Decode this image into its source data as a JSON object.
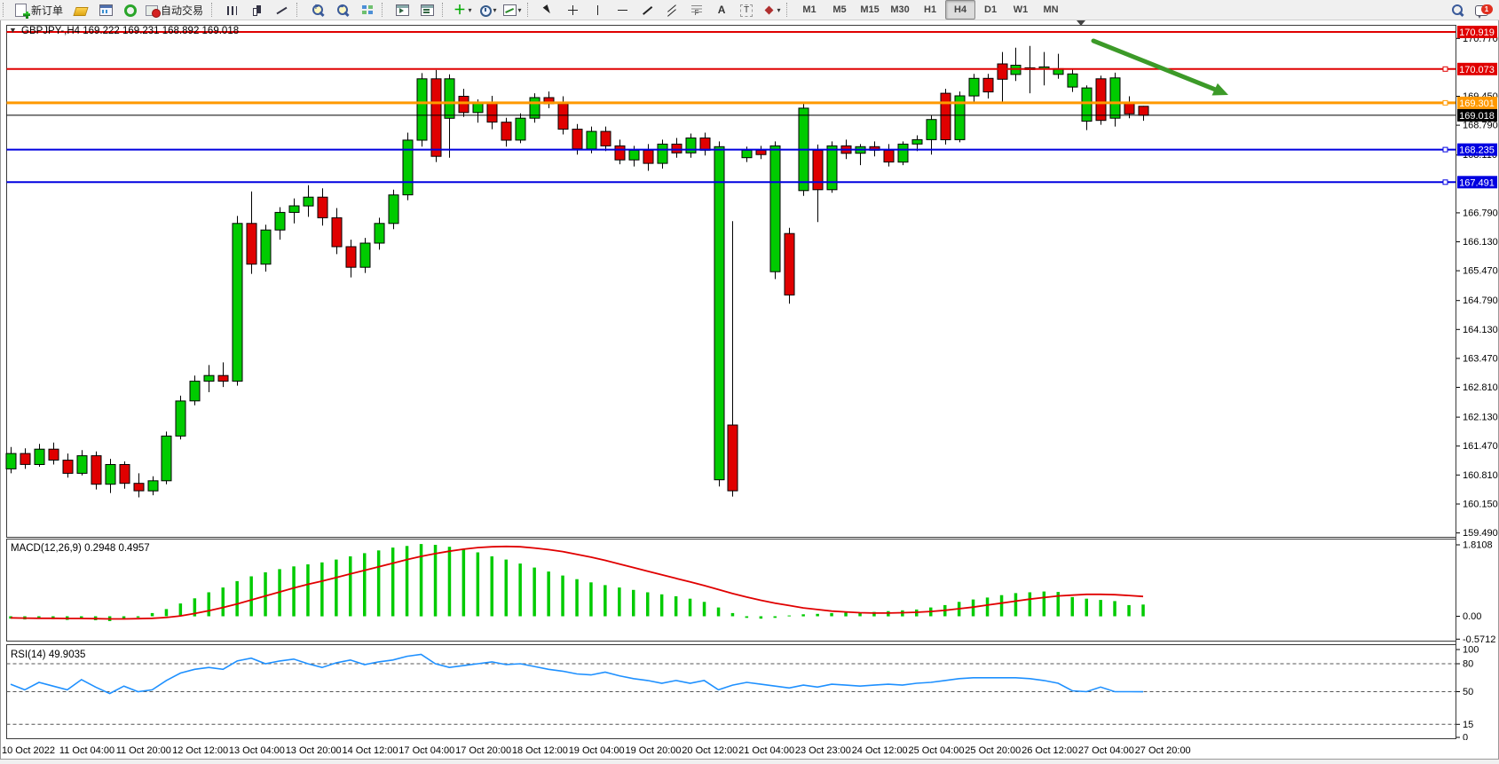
{
  "toolbar": {
    "new_order_label": "新订单",
    "autotrading_label": "自动交易",
    "timeframes": [
      "M1",
      "M5",
      "M15",
      "M30",
      "H1",
      "H4",
      "D1",
      "W1",
      "MN"
    ],
    "active_timeframe": "H4",
    "notification_count": "1",
    "groups": [
      [
        {
          "name": "new-order-button",
          "icon": "doc-plus-icon",
          "label_key": "new_order_label"
        },
        {
          "name": "gold-button",
          "icon": "gold-icon"
        },
        {
          "name": "market-watch-button",
          "icon": "window-chart-icon"
        },
        {
          "name": "signals-button",
          "icon": "signal-icon"
        },
        {
          "name": "autotrading-button",
          "icon": "autotrading-icon",
          "label_key": "autotrading_label"
        }
      ],
      [
        {
          "name": "bar-chart-button",
          "icon": "bar-chart-icon"
        },
        {
          "name": "candlestick-chart-button",
          "icon": "candlestick-icon"
        },
        {
          "name": "line-chart-button",
          "icon": "line-chart-icon"
        }
      ],
      [
        {
          "name": "zoom-in-button",
          "icon": "zoom-in-icon",
          "tail": true
        },
        {
          "name": "zoom-out-button",
          "icon": "zoom-out-icon",
          "tail": true
        },
        {
          "name": "tile-windows-button",
          "icon": "tile-windows-icon"
        }
      ],
      [
        {
          "name": "auto-scroll-button",
          "icon": "window-a-icon"
        },
        {
          "name": "chart-shift-button",
          "icon": "window-b-icon"
        }
      ],
      [
        {
          "name": "indicators-button",
          "icon": "indicators-icon",
          "caret": true
        },
        {
          "name": "periods-button",
          "icon": "clock-icon",
          "caret": true
        },
        {
          "name": "templates-button",
          "icon": "template-icon",
          "caret": true
        }
      ],
      [
        {
          "name": "cursor-button",
          "icon": "cursor-icon"
        },
        {
          "name": "crosshair-button",
          "icon": "crosshair-icon"
        },
        {
          "name": "vertical-line-button",
          "icon": "vline-icon"
        },
        {
          "name": "horizontal-line-button",
          "icon": "hline-icon"
        },
        {
          "name": "trendline-button",
          "icon": "trendline-icon"
        },
        {
          "name": "equidistant-channel-button",
          "icon": "channel-icon"
        },
        {
          "name": "fibonacci-button",
          "icon": "fibonacci-icon"
        },
        {
          "name": "text-button",
          "icon": "text-icon"
        },
        {
          "name": "text-label-button",
          "icon": "text-label-icon"
        },
        {
          "name": "arrows-button",
          "icon": "shapes-icon",
          "caret": true
        }
      ]
    ]
  },
  "icons": {
    "collapse-icon": "▼",
    "dropdown-caret-icon": "▾",
    "indicators-icon": "＋",
    "fibonacci-icon": "F",
    "text-icon": "A",
    "text-label-icon": "T"
  },
  "chart": {
    "title": "GBPJPY-,H4  169.222 169.231 168.892 169.018",
    "macd_label": "MACD(12,26,9) 0.2948 0.4957",
    "rsi_label": "RSI(14) 49.9035",
    "colors": {
      "bull": "#00CB00",
      "bear": "#E00000",
      "wick": "#000000",
      "macd_hist": "#00CB00",
      "macd_signal": "#E00000",
      "rsi_line": "#1E90FF",
      "resistance_line": "#E00000",
      "pivot_line": "#FF9900",
      "price_line": "#000000",
      "support_line": "#0000E0",
      "arrow": "#3C9A28"
    },
    "price_scale_ticks": [
      170.77,
      169.45,
      168.79,
      168.11,
      166.79,
      166.13,
      165.47,
      164.79,
      164.13,
      163.47,
      162.81,
      162.13,
      161.47,
      160.81,
      160.15,
      159.49
    ],
    "price_lines": [
      {
        "price": 170.919,
        "label": "170.919",
        "color": "#E00000",
        "width": 2,
        "handle": false
      },
      {
        "price": 170.073,
        "label": "170.073",
        "color": "#E00000",
        "width": 2,
        "handle": true
      },
      {
        "price": 169.301,
        "label": "169.301",
        "color": "#FF9900",
        "width": 3,
        "handle": true
      },
      {
        "price": 169.018,
        "label": "169.018",
        "color": "#000000",
        "width": 1,
        "handle": false
      },
      {
        "price": 168.235,
        "label": "168.235",
        "color": "#0000E0",
        "width": 2,
        "handle": true
      },
      {
        "price": 167.491,
        "label": "167.491",
        "color": "#0000E0",
        "width": 2,
        "handle": true
      }
    ],
    "macd_scale_labels": [
      {
        "v": 1.8108,
        "text": "1.8108"
      },
      {
        "v": 0,
        "text": "0.00"
      },
      {
        "v": -0.5712,
        "text": "-0.5712"
      }
    ],
    "rsi_scale_labels": [
      {
        "v": 100,
        "text": "100"
      },
      {
        "v": 80,
        "text": "80"
      },
      {
        "v": 50,
        "text": "50"
      },
      {
        "v": 15,
        "text": "15"
      },
      {
        "v": 0,
        "text": "0"
      }
    ],
    "rsi_levels": [
      80,
      50,
      15
    ],
    "date_labels": [
      "10 Oct 2022",
      "11 Oct 04:00",
      "11 Oct 20:00",
      "12 Oct 12:00",
      "13 Oct 04:00",
      "13 Oct 20:00",
      "14 Oct 12:00",
      "17 Oct 04:00",
      "17 Oct 20:00",
      "18 Oct 12:00",
      "19 Oct 04:00",
      "19 Oct 20:00",
      "20 Oct 12:00",
      "21 Oct 04:00",
      "23 Oct 23:00",
      "24 Oct 12:00",
      "25 Oct 04:00",
      "25 Oct 20:00",
      "26 Oct 12:00",
      "27 Oct 04:00",
      "27 Oct 20:00"
    ]
  },
  "chart_data": [
    {
      "type": "candlestick",
      "symbol": "GBPJPY-",
      "period": "H4",
      "last_ohlc": {
        "open": 169.222,
        "high": 169.231,
        "low": 168.892,
        "close": 169.018
      },
      "ylim": [
        159.4,
        171.06
      ],
      "candles": [
        [
          160.95,
          161.45,
          160.85,
          161.3
        ],
        [
          161.3,
          161.42,
          160.95,
          161.05
        ],
        [
          161.05,
          161.52,
          161.0,
          161.4
        ],
        [
          161.4,
          161.55,
          161.05,
          161.15
        ],
        [
          161.15,
          161.3,
          160.75,
          160.85
        ],
        [
          160.85,
          161.38,
          160.8,
          161.25
        ],
        [
          161.25,
          161.35,
          160.48,
          160.6
        ],
        [
          160.6,
          161.18,
          160.4,
          161.05
        ],
        [
          161.05,
          161.12,
          160.5,
          160.62
        ],
        [
          160.62,
          160.85,
          160.3,
          160.45
        ],
        [
          160.45,
          160.78,
          160.35,
          160.68
        ],
        [
          160.68,
          161.8,
          160.6,
          161.7
        ],
        [
          161.7,
          162.62,
          161.62,
          162.5
        ],
        [
          162.5,
          163.08,
          162.4,
          162.95
        ],
        [
          162.95,
          163.32,
          162.7,
          163.08
        ],
        [
          163.08,
          163.38,
          162.82,
          162.95
        ],
        [
          162.95,
          166.72,
          162.85,
          166.55
        ],
        [
          166.55,
          167.28,
          165.4,
          165.62
        ],
        [
          165.62,
          166.52,
          165.45,
          166.4
        ],
        [
          166.4,
          166.92,
          166.18,
          166.8
        ],
        [
          166.8,
          167.12,
          166.55,
          166.95
        ],
        [
          166.95,
          167.42,
          166.7,
          167.15
        ],
        [
          167.15,
          167.35,
          166.5,
          166.68
        ],
        [
          166.68,
          166.9,
          165.85,
          166.02
        ],
        [
          166.02,
          166.18,
          165.32,
          165.55
        ],
        [
          165.55,
          166.22,
          165.42,
          166.1
        ],
        [
          166.1,
          166.68,
          165.95,
          166.55
        ],
        [
          166.55,
          167.32,
          166.42,
          167.2
        ],
        [
          167.2,
          168.62,
          167.08,
          168.45
        ],
        [
          168.45,
          169.98,
          168.3,
          169.85
        ],
        [
          169.85,
          170.05,
          167.95,
          168.08
        ],
        [
          168.95,
          169.95,
          168.05,
          169.85
        ],
        [
          169.45,
          169.62,
          168.98,
          169.08
        ],
        [
          169.08,
          169.38,
          168.85,
          169.3
        ],
        [
          169.3,
          169.46,
          168.7,
          168.86
        ],
        [
          168.86,
          168.96,
          168.3,
          168.45
        ],
        [
          168.45,
          169.06,
          168.38,
          168.95
        ],
        [
          168.95,
          169.52,
          168.85,
          169.42
        ],
        [
          169.42,
          169.56,
          169.18,
          169.28
        ],
        [
          169.28,
          169.45,
          168.58,
          168.7
        ],
        [
          168.7,
          168.82,
          168.12,
          168.25
        ],
        [
          168.25,
          168.76,
          168.15,
          168.65
        ],
        [
          168.65,
          168.76,
          168.2,
          168.32
        ],
        [
          168.32,
          168.46,
          167.9,
          168.0
        ],
        [
          168.0,
          168.32,
          167.85,
          168.22
        ],
        [
          168.22,
          168.36,
          167.75,
          167.92
        ],
        [
          167.92,
          168.46,
          167.8,
          168.36
        ],
        [
          168.36,
          168.5,
          168.05,
          168.16
        ],
        [
          168.16,
          168.6,
          168.05,
          168.5
        ],
        [
          168.5,
          168.62,
          168.1,
          168.22
        ],
        [
          160.7,
          168.42,
          160.55,
          168.3
        ],
        [
          161.95,
          166.6,
          160.32,
          160.45
        ],
        [
          168.05,
          168.3,
          167.95,
          168.22
        ],
        [
          168.22,
          168.32,
          168.02,
          168.12
        ],
        [
          165.45,
          168.42,
          165.28,
          168.32
        ],
        [
          166.32,
          166.45,
          164.72,
          164.92
        ],
        [
          167.3,
          169.28,
          167.18,
          169.18
        ],
        [
          168.22,
          168.35,
          166.58,
          167.32
        ],
        [
          167.32,
          168.42,
          167.25,
          168.32
        ],
        [
          168.32,
          168.46,
          168.02,
          168.15
        ],
        [
          168.15,
          168.36,
          167.88,
          168.3
        ],
        [
          168.3,
          168.42,
          168.08,
          168.22
        ],
        [
          168.22,
          168.36,
          167.85,
          167.95
        ],
        [
          167.95,
          168.42,
          167.88,
          168.36
        ],
        [
          168.36,
          168.56,
          168.2,
          168.46
        ],
        [
          168.46,
          169.02,
          168.12,
          168.92
        ],
        [
          169.52,
          169.62,
          168.35,
          168.46
        ],
        [
          168.46,
          169.56,
          168.4,
          169.46
        ],
        [
          169.46,
          169.96,
          169.3,
          169.86
        ],
        [
          169.86,
          169.96,
          169.4,
          169.55
        ],
        [
          170.19,
          170.46,
          169.3,
          169.84
        ],
        [
          169.95,
          170.56,
          169.8,
          170.16
        ],
        [
          170.06,
          170.6,
          169.52,
          170.1
        ],
        [
          170.08,
          170.46,
          169.7,
          170.12
        ],
        [
          169.95,
          170.42,
          169.85,
          170.08
        ],
        [
          169.66,
          170.06,
          169.55,
          169.96
        ],
        [
          168.88,
          169.7,
          168.68,
          169.64
        ],
        [
          169.85,
          169.92,
          168.8,
          168.9
        ],
        [
          168.95,
          169.99,
          168.76,
          169.87
        ],
        [
          169.32,
          169.45,
          168.95,
          169.05
        ],
        [
          169.222,
          169.231,
          168.892,
          169.018
        ]
      ]
    },
    {
      "type": "bar",
      "name": "MACD(12,26,9)",
      "current_main": 0.2948,
      "current_signal": 0.4957,
      "ylim": [
        -0.61,
        1.9
      ],
      "hist": [
        -0.06,
        -0.08,
        -0.05,
        -0.07,
        -0.09,
        -0.06,
        -0.1,
        -0.12,
        -0.08,
        -0.03,
        0.08,
        0.18,
        0.32,
        0.45,
        0.6,
        0.72,
        0.88,
        1.0,
        1.1,
        1.18,
        1.25,
        1.3,
        1.35,
        1.42,
        1.5,
        1.58,
        1.65,
        1.72,
        1.76,
        1.81,
        1.79,
        1.74,
        1.68,
        1.6,
        1.5,
        1.42,
        1.32,
        1.22,
        1.12,
        1.02,
        0.93,
        0.85,
        0.78,
        0.72,
        0.66,
        0.6,
        0.55,
        0.5,
        0.44,
        0.36,
        0.22,
        0.08,
        -0.04,
        -0.06,
        -0.04,
        0.02,
        0.05,
        0.06,
        0.08,
        0.09,
        0.1,
        0.11,
        0.13,
        0.15,
        0.17,
        0.22,
        0.28,
        0.36,
        0.42,
        0.47,
        0.53,
        0.58,
        0.6,
        0.62,
        0.61,
        0.48,
        0.44,
        0.41,
        0.38,
        0.28,
        0.2948
      ],
      "signal": [
        -0.04,
        -0.045,
        -0.05,
        -0.05,
        -0.055,
        -0.055,
        -0.06,
        -0.065,
        -0.065,
        -0.06,
        -0.05,
        -0.03,
        0.01,
        0.07,
        0.14,
        0.22,
        0.31,
        0.41,
        0.51,
        0.61,
        0.71,
        0.8,
        0.88,
        0.97,
        1.06,
        1.15,
        1.24,
        1.33,
        1.42,
        1.5,
        1.57,
        1.63,
        1.68,
        1.72,
        1.74,
        1.75,
        1.74,
        1.71,
        1.67,
        1.62,
        1.55,
        1.48,
        1.4,
        1.31,
        1.22,
        1.13,
        1.04,
        0.95,
        0.86,
        0.77,
        0.67,
        0.57,
        0.48,
        0.4,
        0.33,
        0.27,
        0.21,
        0.17,
        0.13,
        0.11,
        0.09,
        0.08,
        0.08,
        0.09,
        0.1,
        0.12,
        0.15,
        0.19,
        0.23,
        0.28,
        0.33,
        0.38,
        0.43,
        0.47,
        0.51,
        0.53,
        0.55,
        0.55,
        0.54,
        0.52,
        0.4957
      ]
    },
    {
      "type": "line",
      "name": "RSI(14)",
      "current": 49.9035,
      "ylim": [
        0,
        100
      ],
      "values": [
        58,
        52,
        60,
        56,
        52,
        63,
        55,
        48,
        56,
        50,
        52,
        62,
        70,
        74,
        76,
        74,
        83,
        86,
        80,
        83,
        85,
        80,
        76,
        81,
        84,
        79,
        82,
        84,
        88,
        90,
        80,
        76,
        78,
        80,
        82,
        79,
        80,
        77,
        74,
        72,
        69,
        68,
        71,
        67,
        64,
        62,
        59,
        62,
        59,
        62,
        52,
        57,
        60,
        58,
        56,
        54,
        57,
        55,
        58,
        57,
        56,
        57,
        58,
        57,
        59,
        60,
        62,
        64,
        65,
        65,
        65,
        65,
        64,
        62,
        59,
        51,
        50,
        55,
        50,
        50,
        49.9
      ]
    }
  ]
}
